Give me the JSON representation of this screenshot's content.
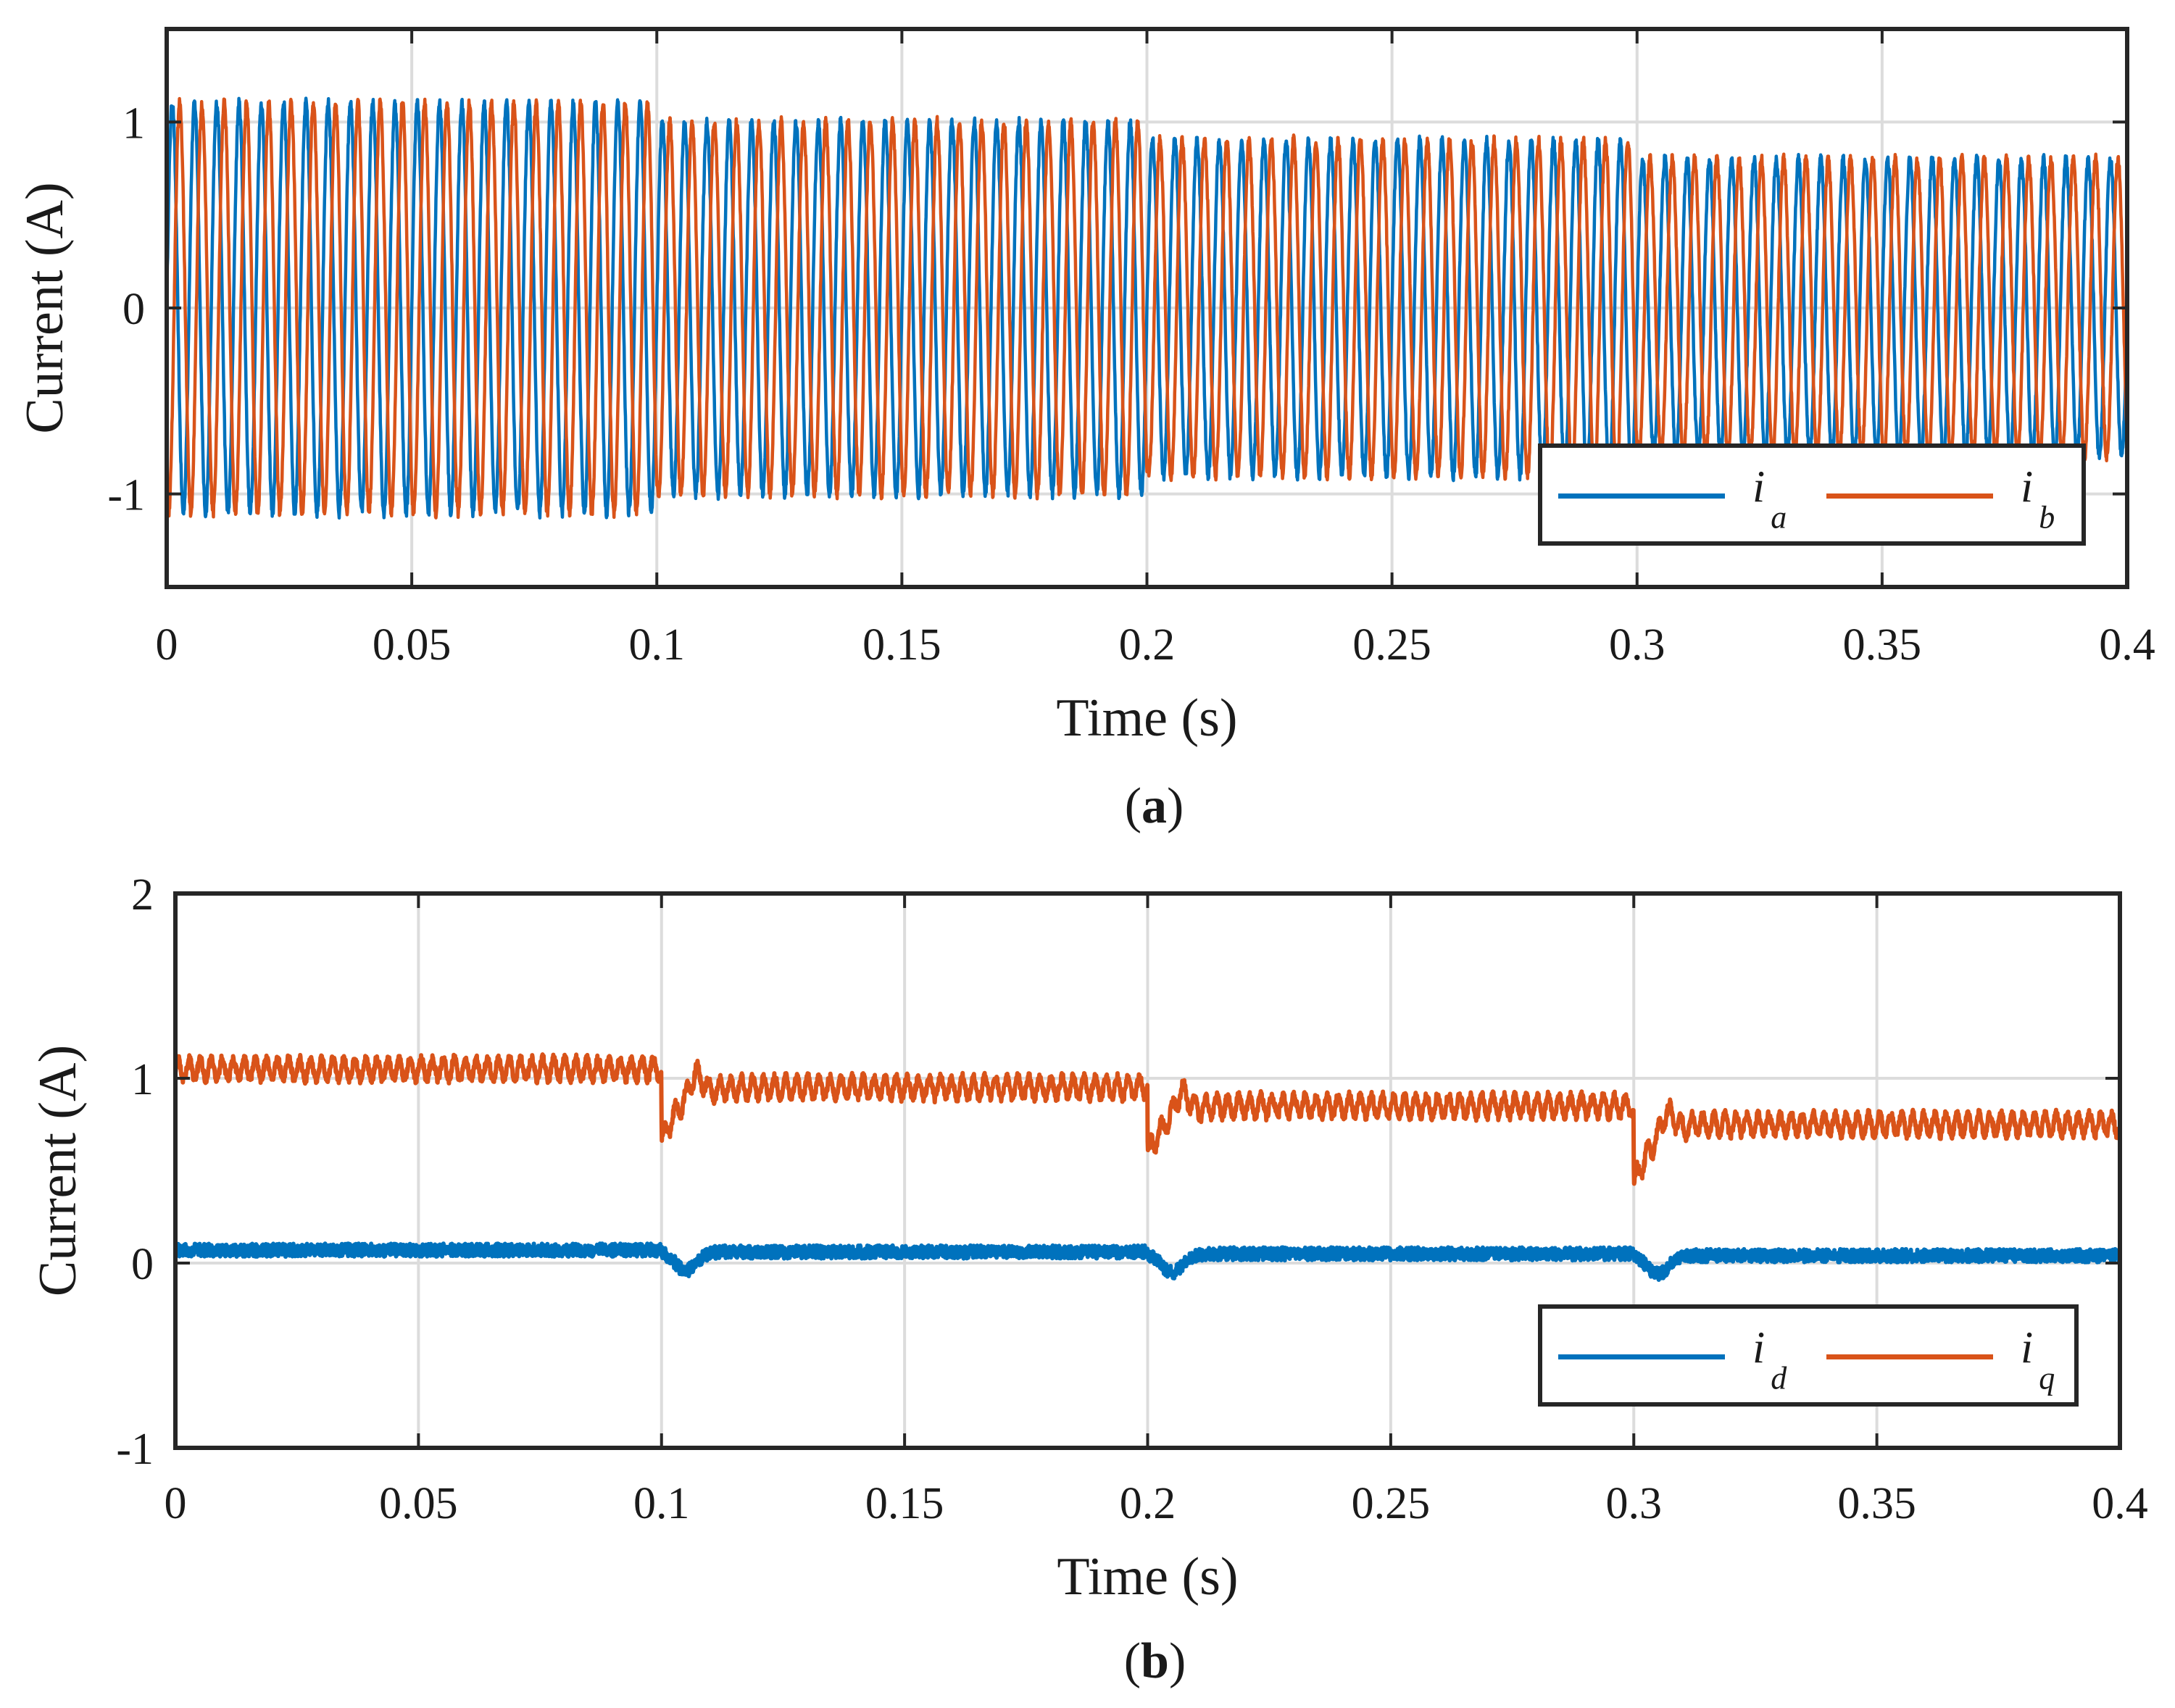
{
  "colors": {
    "blue": "#0072BD",
    "orange": "#D95319"
  },
  "chart_data": [
    {
      "type": "line",
      "panel_label": "a",
      "caption_open": "(",
      "caption_close": ")",
      "xlabel": "Time (s)",
      "ylabel": "Current (A)",
      "xlim": [
        0,
        0.4
      ],
      "ylim": [
        -1.5,
        1.5
      ],
      "grid": true,
      "legend_position": "bottom-right",
      "xticks": [
        "0",
        "0.05",
        "0.1",
        "0.15",
        "0.2",
        "0.25",
        "0.3",
        "0.35",
        "0.4"
      ],
      "yticks": [
        "-1",
        "0",
        "1"
      ],
      "ytick_values": [
        -1,
        0,
        1
      ],
      "series": [
        {
          "name": "i",
          "subscript": "a",
          "color": "#0072BD",
          "waveform": "sine",
          "frequency_hz": 220,
          "phase_deg": 0,
          "segments": [
            {
              "t0": 0,
              "t1": 0.1,
              "amplitude": 1.1
            },
            {
              "t0": 0.1,
              "t1": 0.2,
              "amplitude": 1.0
            },
            {
              "t0": 0.2,
              "t1": 0.3,
              "amplitude": 0.9
            },
            {
              "t0": 0.3,
              "t1": 0.4,
              "amplitude": 0.8
            }
          ]
        },
        {
          "name": "i",
          "subscript": "b",
          "color": "#D95319",
          "waveform": "sine",
          "frequency_hz": 220,
          "phase_deg": -120,
          "segments": [
            {
              "t0": 0,
              "t1": 0.1,
              "amplitude": 1.1
            },
            {
              "t0": 0.1,
              "t1": 0.2,
              "amplitude": 1.0
            },
            {
              "t0": 0.2,
              "t1": 0.3,
              "amplitude": 0.9
            },
            {
              "t0": 0.3,
              "t1": 0.4,
              "amplitude": 0.8
            }
          ]
        }
      ]
    },
    {
      "type": "line",
      "panel_label": "b",
      "caption_open": "(",
      "caption_close": ")",
      "xlabel": "Time (s)",
      "ylabel": "Current (A)",
      "xlim": [
        0,
        0.4
      ],
      "ylim": [
        -1,
        2
      ],
      "grid": true,
      "legend_position": "bottom-right",
      "xticks": [
        "0",
        "0.05",
        "0.1",
        "0.15",
        "0.2",
        "0.25",
        "0.3",
        "0.35",
        "0.4"
      ],
      "yticks": [
        "-1",
        "0",
        "1",
        "2"
      ],
      "ytick_values": [
        -1,
        0,
        1,
        2
      ],
      "series": [
        {
          "name": "i",
          "subscript": "d",
          "color": "#0072BD",
          "waveform": "dc",
          "segments": [
            {
              "t0": 0,
              "t1": 0.1,
              "level": 0.07
            },
            {
              "t0": 0.1,
              "t1": 0.2,
              "level": 0.06
            },
            {
              "t0": 0.2,
              "t1": 0.3,
              "level": 0.05
            },
            {
              "t0": 0.3,
              "t1": 0.4,
              "level": 0.04
            }
          ],
          "step_transient": {
            "times": [
              0.1,
              0.2,
              0.3
            ],
            "dip": -0.1
          }
        },
        {
          "name": "i",
          "subscript": "q",
          "color": "#D95319",
          "waveform": "dc",
          "segments": [
            {
              "t0": 0,
              "t1": 0.1,
              "level": 1.05
            },
            {
              "t0": 0.1,
              "t1": 0.2,
              "level": 0.95
            },
            {
              "t0": 0.2,
              "t1": 0.3,
              "level": 0.85
            },
            {
              "t0": 0.3,
              "t1": 0.4,
              "level": 0.75
            }
          ],
          "step_transient": {
            "times": [
              0.1,
              0.2,
              0.3
            ],
            "dip": [
              0.65,
              0.58,
              0.42
            ]
          }
        }
      ]
    }
  ]
}
